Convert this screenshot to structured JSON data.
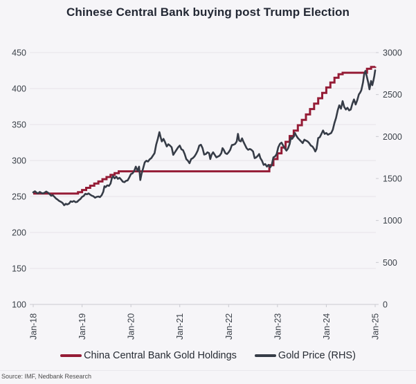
{
  "page": {
    "title": "Chinese Central Bank buying post Trump Election",
    "source": "Source: IMF, Nedbank Research"
  },
  "legend": [
    {
      "label": "China Central Bank Gold Holdings",
      "color": "#951c36"
    },
    {
      "label": "Gold Price (RHS)",
      "color": "#363c47"
    }
  ],
  "colors": {
    "background": "#f6f5f8",
    "gridline": "#e5e4e8",
    "axis_line": "#c9c9cf",
    "tick_label": "#3b4149",
    "title_text": "#232834",
    "holdings_line": "#951c36",
    "gold_price_line": "#363c47"
  },
  "chart_data": {
    "type": "line",
    "title": "Chinese Central Bank buying post Trump Election",
    "xlabel": "",
    "ylabel_left": "China Central Bank Gold Holdings",
    "ylabel_right": "Gold Price (RHS)",
    "grid": "horizontal",
    "legend_position": "bottom",
    "x_axis": {
      "labels": [
        "Jan-18",
        "Jan-19",
        "Jan-20",
        "Jan-21",
        "Jan-22",
        "Jan-23",
        "Jan-24",
        "Jan-25"
      ],
      "tick_months": [
        0,
        12,
        24,
        36,
        48,
        60,
        72,
        84
      ]
    },
    "left_axis": {
      "min": 100,
      "max": 450,
      "step": 50,
      "ticks": [
        450,
        400,
        350,
        300,
        250,
        200,
        150,
        100
      ]
    },
    "right_axis": {
      "min": 0,
      "max": 3000,
      "step": 500,
      "ticks": [
        3000,
        2500,
        2000,
        1500,
        1000,
        500,
        0
      ]
    },
    "series": [
      {
        "name": "China Central Bank Gold Holdings",
        "data_name": "gold-holdings-line",
        "axis": "left",
        "style": "step",
        "color": "#951c36",
        "stroke_width": 3,
        "monthly_values": [
          254,
          254,
          254,
          254,
          254,
          254,
          254,
          254,
          254,
          254,
          254,
          256,
          259,
          262,
          265,
          268,
          271,
          274,
          277,
          280,
          282.5,
          285,
          285,
          285,
          285,
          285,
          285,
          285,
          285,
          285,
          285,
          285,
          285,
          285,
          285,
          285,
          285,
          285,
          285,
          285,
          285,
          285,
          285,
          285,
          285,
          285,
          285,
          285,
          285,
          285,
          285,
          285,
          285,
          285,
          285,
          285,
          285,
          285,
          293.5,
          302,
          310,
          318,
          326,
          334,
          341.5,
          349,
          356.5,
          364,
          371.5,
          379,
          386.5,
          394,
          401.5,
          408.5,
          415,
          420,
          422,
          422,
          422,
          422,
          422,
          422,
          427.5,
          430,
          430.5
        ]
      },
      {
        "name": "Gold Price (RHS)",
        "data_name": "gold-price-line",
        "axis": "right",
        "style": "line",
        "color": "#363c47",
        "stroke_width": 2.6,
        "points": [
          [
            0,
            1335
          ],
          [
            0.4,
            1348
          ],
          [
            0.8,
            1332
          ],
          [
            1.2,
            1322
          ],
          [
            1.6,
            1340
          ],
          [
            2,
            1328
          ],
          [
            2.4,
            1322
          ],
          [
            2.8,
            1332
          ],
          [
            3.2,
            1345
          ],
          [
            3.6,
            1332
          ],
          [
            4,
            1315
          ],
          [
            4.4,
            1295
          ],
          [
            4.8,
            1302
          ],
          [
            5.2,
            1282
          ],
          [
            5.6,
            1262
          ],
          [
            6,
            1248
          ],
          [
            6.4,
            1232
          ],
          [
            6.8,
            1222
          ],
          [
            7.2,
            1210
          ],
          [
            7.6,
            1182
          ],
          [
            8,
            1198
          ],
          [
            8.4,
            1192
          ],
          [
            8.8,
            1202
          ],
          [
            9.2,
            1228
          ],
          [
            9.6,
            1222
          ],
          [
            10,
            1232
          ],
          [
            10.4,
            1218
          ],
          [
            10.8,
            1222
          ],
          [
            11.2,
            1242
          ],
          [
            11.6,
            1256
          ],
          [
            12,
            1282
          ],
          [
            12.4,
            1292
          ],
          [
            12.8,
            1318
          ],
          [
            13.2,
            1312
          ],
          [
            13.6,
            1322
          ],
          [
            14,
            1308
          ],
          [
            14.4,
            1296
          ],
          [
            14.8,
            1288
          ],
          [
            15.2,
            1272
          ],
          [
            15.6,
            1282
          ],
          [
            16,
            1286
          ],
          [
            16.4,
            1278
          ],
          [
            16.8,
            1300
          ],
          [
            17.2,
            1342
          ],
          [
            17.5,
            1408
          ],
          [
            17.8,
            1398
          ],
          [
            18.2,
            1418
          ],
          [
            18.6,
            1412
          ],
          [
            19,
            1440
          ],
          [
            19.3,
            1500
          ],
          [
            19.6,
            1528
          ],
          [
            20,
            1502
          ],
          [
            20.4,
            1522
          ],
          [
            20.8,
            1496
          ],
          [
            21.2,
            1508
          ],
          [
            21.6,
            1488
          ],
          [
            22,
            1462
          ],
          [
            22.4,
            1456
          ],
          [
            22.8,
            1472
          ],
          [
            23.2,
            1478
          ],
          [
            23.6,
            1512
          ],
          [
            24,
            1552
          ],
          [
            24.4,
            1562
          ],
          [
            24.8,
            1588
          ],
          [
            25.2,
            1642
          ],
          [
            25.6,
            1592
          ],
          [
            26,
            1642
          ],
          [
            26.3,
            1482
          ],
          [
            26.6,
            1552
          ],
          [
            27,
            1622
          ],
          [
            27.4,
            1692
          ],
          [
            27.8,
            1712
          ],
          [
            28.2,
            1702
          ],
          [
            28.6,
            1728
          ],
          [
            29,
            1742
          ],
          [
            29.4,
            1772
          ],
          [
            29.8,
            1802
          ],
          [
            30.2,
            1902
          ],
          [
            30.6,
            1972
          ],
          [
            31,
            2052
          ],
          [
            31.3,
            1992
          ],
          [
            31.6,
            1942
          ],
          [
            32,
            1972
          ],
          [
            32.4,
            1932
          ],
          [
            32.8,
            1882
          ],
          [
            33.2,
            1908
          ],
          [
            33.6,
            1892
          ],
          [
            34,
            1872
          ],
          [
            34.4,
            1782
          ],
          [
            34.8,
            1812
          ],
          [
            35.2,
            1842
          ],
          [
            35.6,
            1872
          ],
          [
            36,
            1892
          ],
          [
            36.4,
            1848
          ],
          [
            36.8,
            1838
          ],
          [
            37.2,
            1792
          ],
          [
            37.6,
            1732
          ],
          [
            38,
            1712
          ],
          [
            38.4,
            1682
          ],
          [
            38.8,
            1732
          ],
          [
            39.2,
            1742
          ],
          [
            39.6,
            1762
          ],
          [
            40,
            1792
          ],
          [
            40.4,
            1832
          ],
          [
            40.8,
            1892
          ],
          [
            41.2,
            1902
          ],
          [
            41.6,
            1862
          ],
          [
            42,
            1785
          ],
          [
            42.4,
            1792
          ],
          [
            42.8,
            1812
          ],
          [
            43.2,
            1802
          ],
          [
            43.5,
            1732
          ],
          [
            43.8,
            1782
          ],
          [
            44.2,
            1812
          ],
          [
            44.6,
            1782
          ],
          [
            45,
            1752
          ],
          [
            45.4,
            1762
          ],
          [
            45.8,
            1772
          ],
          [
            46.2,
            1802
          ],
          [
            46.5,
            1862
          ],
          [
            46.8,
            1842
          ],
          [
            47.2,
            1802
          ],
          [
            47.6,
            1792
          ],
          [
            48,
            1812
          ],
          [
            48.4,
            1842
          ],
          [
            48.8,
            1898
          ],
          [
            49.2,
            1902
          ],
          [
            49.6,
            1912
          ],
          [
            50,
            1942
          ],
          [
            50.3,
            2032
          ],
          [
            50.6,
            1952
          ],
          [
            51,
            1942
          ],
          [
            51.3,
            1978
          ],
          [
            51.6,
            1942
          ],
          [
            52,
            1902
          ],
          [
            52.4,
            1862
          ],
          [
            52.8,
            1842
          ],
          [
            53.2,
            1852
          ],
          [
            53.6,
            1842
          ],
          [
            54,
            1822
          ],
          [
            54.4,
            1742
          ],
          [
            54.8,
            1752
          ],
          [
            55.2,
            1772
          ],
          [
            55.5,
            1792
          ],
          [
            55.8,
            1742
          ],
          [
            56.2,
            1712
          ],
          [
            56.6,
            1662
          ],
          [
            57,
            1672
          ],
          [
            57.4,
            1642
          ],
          [
            57.8,
            1662
          ],
          [
            58.2,
            1632
          ],
          [
            58.6,
            1662
          ],
          [
            59,
            1752
          ],
          [
            59.4,
            1762
          ],
          [
            59.8,
            1792
          ],
          [
            60.2,
            1872
          ],
          [
            60.6,
            1912
          ],
          [
            61,
            1928
          ],
          [
            61.4,
            1892
          ],
          [
            61.8,
            1862
          ],
          [
            62.2,
            1832
          ],
          [
            62.6,
            1858
          ],
          [
            63,
            1912
          ],
          [
            63.3,
            1988
          ],
          [
            63.6,
            1972
          ],
          [
            64,
            2002
          ],
          [
            64.3,
            2042
          ],
          [
            64.6,
            2012
          ],
          [
            65,
            1982
          ],
          [
            65.4,
            1962
          ],
          [
            65.8,
            1942
          ],
          [
            66.2,
            1922
          ],
          [
            66.6,
            1962
          ],
          [
            67,
            1952
          ],
          [
            67.4,
            1942
          ],
          [
            67.8,
            1922
          ],
          [
            68.2,
            1892
          ],
          [
            68.6,
            1882
          ],
          [
            69,
            1852
          ],
          [
            69.3,
            1822
          ],
          [
            69.6,
            1852
          ],
          [
            70,
            1982
          ],
          [
            70.4,
            1992
          ],
          [
            70.8,
            2032
          ],
          [
            71.2,
            2072
          ],
          [
            71.6,
            2032
          ],
          [
            72,
            2042
          ],
          [
            72.4,
            2022
          ],
          [
            72.8,
            2032
          ],
          [
            73.2,
            2042
          ],
          [
            73.6,
            2082
          ],
          [
            74,
            2162
          ],
          [
            74.4,
            2222
          ],
          [
            74.8,
            2312
          ],
          [
            75.2,
            2372
          ],
          [
            75.6,
            2332
          ],
          [
            76,
            2422
          ],
          [
            76.4,
            2352
          ],
          [
            76.8,
            2322
          ],
          [
            77.2,
            2342
          ],
          [
            77.6,
            2312
          ],
          [
            78,
            2322
          ],
          [
            78.4,
            2392
          ],
          [
            78.8,
            2442
          ],
          [
            79.2,
            2382
          ],
          [
            79.6,
            2432
          ],
          [
            80,
            2502
          ],
          [
            80.3,
            2522
          ],
          [
            80.6,
            2552
          ],
          [
            81,
            2642
          ],
          [
            81.3,
            2742
          ],
          [
            81.6,
            2782
          ],
          [
            81.9,
            2722
          ],
          [
            82.3,
            2642
          ],
          [
            82.6,
            2562
          ],
          [
            83,
            2662
          ],
          [
            83.3,
            2612
          ],
          [
            83.6,
            2672
          ],
          [
            83.8,
            2722
          ],
          [
            84,
            2788
          ]
        ]
      }
    ]
  }
}
